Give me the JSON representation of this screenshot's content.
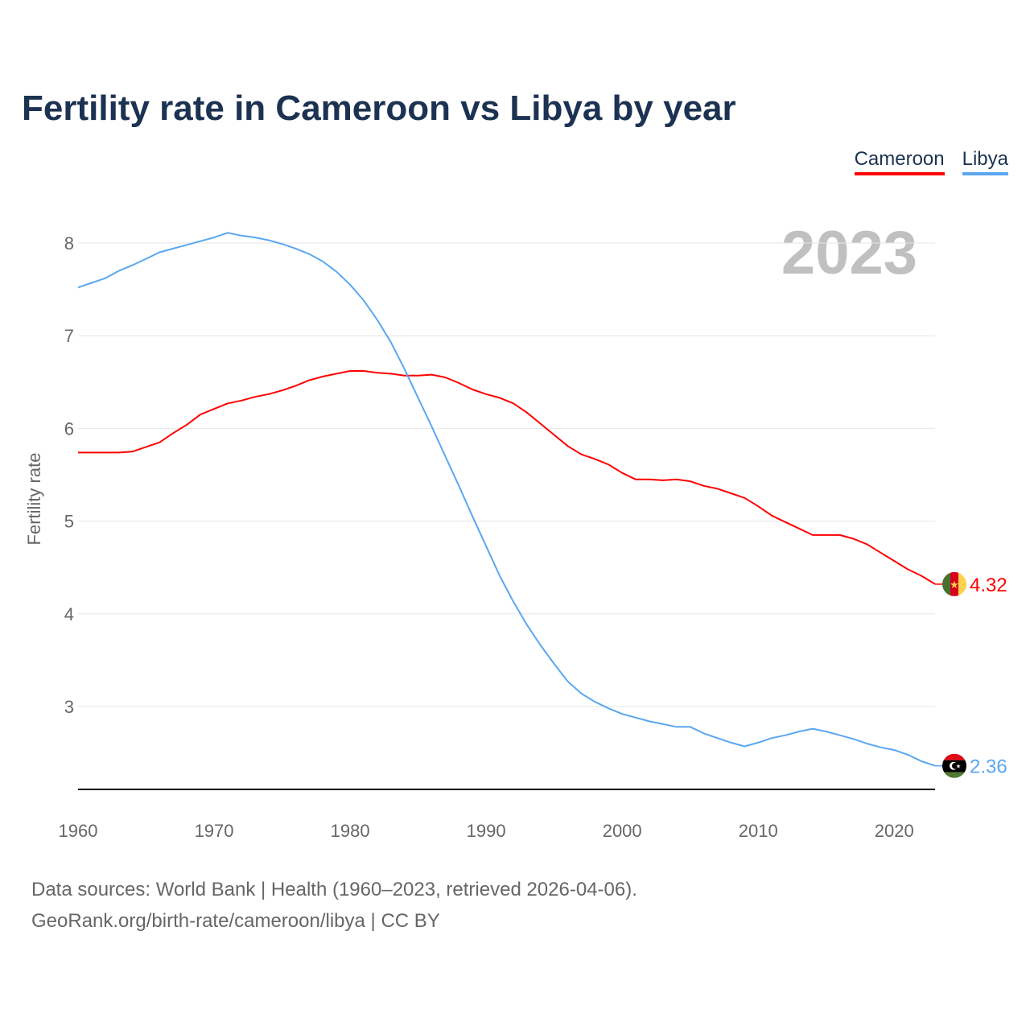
{
  "chart_data": {
    "type": "line",
    "title": "Fertility rate in Cameroon vs Libya by year",
    "xlabel": "",
    "ylabel": "Fertility rate",
    "year_watermark": "2023",
    "xlim": [
      1960,
      2023
    ],
    "ylim": [
      2.1,
      8.3
    ],
    "xticks": [
      1960,
      1970,
      1980,
      1990,
      2000,
      2010,
      2020
    ],
    "yticks": [
      3,
      4,
      5,
      6,
      7,
      8
    ],
    "grid": true,
    "legend_placement": "top-right",
    "x": [
      1960,
      1961,
      1962,
      1963,
      1964,
      1965,
      1966,
      1967,
      1968,
      1969,
      1970,
      1971,
      1972,
      1973,
      1974,
      1975,
      1976,
      1977,
      1978,
      1979,
      1980,
      1981,
      1982,
      1983,
      1984,
      1985,
      1986,
      1987,
      1988,
      1989,
      1990,
      1991,
      1992,
      1993,
      1994,
      1995,
      1996,
      1997,
      1998,
      1999,
      2000,
      2001,
      2002,
      2003,
      2004,
      2005,
      2006,
      2007,
      2008,
      2009,
      2010,
      2011,
      2012,
      2013,
      2014,
      2015,
      2016,
      2017,
      2018,
      2019,
      2020,
      2021,
      2022,
      2023
    ],
    "series": [
      {
        "name": "Cameroon",
        "color": "#ff0000",
        "end_label": "4.32",
        "values": [
          5.74,
          5.74,
          5.74,
          5.74,
          5.75,
          5.8,
          5.85,
          5.95,
          6.04,
          6.15,
          6.21,
          6.27,
          6.3,
          6.34,
          6.37,
          6.41,
          6.46,
          6.52,
          6.56,
          6.59,
          6.62,
          6.62,
          6.6,
          6.59,
          6.57,
          6.57,
          6.58,
          6.55,
          6.49,
          6.42,
          6.37,
          6.33,
          6.27,
          6.17,
          6.05,
          5.93,
          5.81,
          5.72,
          5.67,
          5.61,
          5.52,
          5.45,
          5.45,
          5.44,
          5.45,
          5.43,
          5.38,
          5.35,
          5.3,
          5.25,
          5.16,
          5.06,
          4.99,
          4.92,
          4.85,
          4.85,
          4.85,
          4.81,
          4.75,
          4.66,
          4.57,
          4.48,
          4.41,
          4.32
        ]
      },
      {
        "name": "Libya",
        "color": "#5aa7f0",
        "end_label": "2.36",
        "values": [
          7.52,
          7.57,
          7.62,
          7.7,
          7.76,
          7.83,
          7.9,
          7.94,
          7.98,
          8.02,
          8.06,
          8.11,
          8.08,
          8.06,
          8.03,
          7.99,
          7.94,
          7.88,
          7.8,
          7.69,
          7.55,
          7.38,
          7.17,
          6.93,
          6.64,
          6.33,
          6.02,
          5.7,
          5.38,
          5.05,
          4.73,
          4.41,
          4.13,
          3.88,
          3.66,
          3.46,
          3.27,
          3.14,
          3.05,
          2.98,
          2.92,
          2.88,
          2.84,
          2.81,
          2.78,
          2.78,
          2.71,
          2.66,
          2.61,
          2.57,
          2.61,
          2.66,
          2.69,
          2.73,
          2.76,
          2.73,
          2.69,
          2.65,
          2.6,
          2.56,
          2.53,
          2.48,
          2.41,
          2.36
        ]
      }
    ]
  },
  "source": {
    "line1": "Data sources: World Bank | Health (1960–2023, retrieved 2026-04-06).",
    "line2": "GeoRank.org/birth-rate/cameroon/libya | CC BY"
  }
}
